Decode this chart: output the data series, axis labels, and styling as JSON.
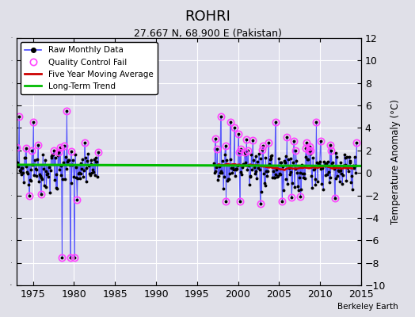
{
  "title": "ROHRI",
  "subtitle": "27.667 N, 68.900 E (Pakistan)",
  "ylabel": "Temperature Anomaly (°C)",
  "credit": "Berkeley Earth",
  "xlim": [
    1973,
    2015
  ],
  "ylim": [
    -10,
    12
  ],
  "yticks": [
    -10,
    -8,
    -6,
    -4,
    -2,
    0,
    2,
    4,
    6,
    8,
    10,
    12
  ],
  "xticks": [
    1975,
    1980,
    1985,
    1990,
    1995,
    2000,
    2005,
    2010,
    2015
  ],
  "bg_color": "#e0e0e8",
  "plot_bg": "#e0e0ec",
  "grid_color": "#ffffff",
  "raw_color": "#4444ff",
  "qc_color": "#ff44ff",
  "moving_avg_color": "#cc0000",
  "trend_color": "#00bb00",
  "trend_x": [
    1973,
    2015
  ],
  "trend_y": [
    0.72,
    0.62
  ]
}
